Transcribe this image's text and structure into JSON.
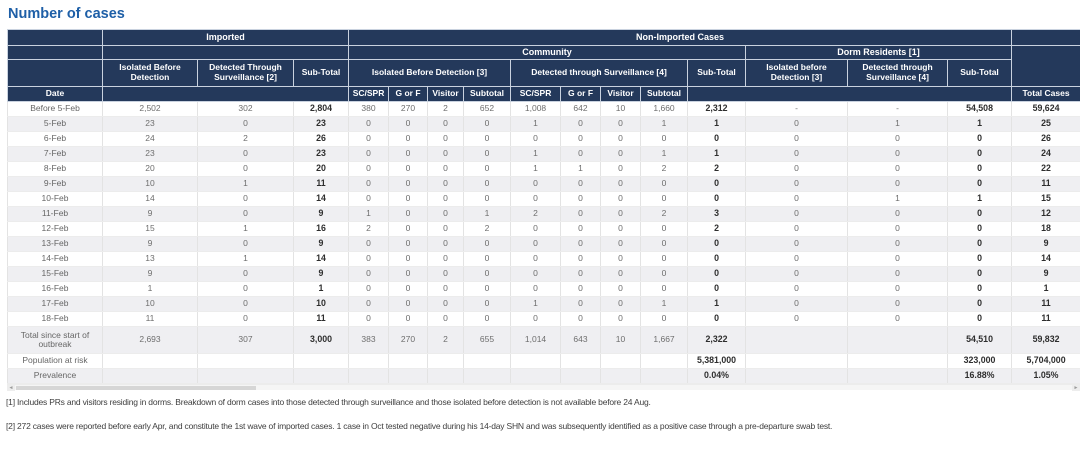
{
  "page": {
    "title": "Number of cases"
  },
  "table": {
    "header": {
      "imported": "Imported",
      "non_imported": "Non-Imported Cases",
      "community": "Community",
      "dorm": "Dorm Residents [1]",
      "imported_cols": [
        "Isolated Before Detection",
        "Detected Through Surveillance [2]",
        "Sub-Total"
      ],
      "community_groups": [
        "Isolated Before Detection [3]",
        "Detected through Surveillance [4]",
        "Sub-Total"
      ],
      "dorm_cols": [
        "Isolated before Detection [3]",
        "Detected through Surveillance [4]",
        "Sub-Total"
      ],
      "sub_cols": [
        "SC/SPR",
        "G or F",
        "Visitor",
        "Subtotal"
      ],
      "date_label": "Date",
      "total_cases": "Total Cases"
    },
    "bold_columns": [
      3,
      12,
      15,
      16
    ],
    "rows": [
      [
        "Before 5-Feb",
        "2,502",
        "302",
        "2,804",
        "380",
        "270",
        "2",
        "652",
        "1,008",
        "642",
        "10",
        "1,660",
        "2,312",
        "-",
        "-",
        "54,508",
        "59,624"
      ],
      [
        "5-Feb",
        "23",
        "0",
        "23",
        "0",
        "0",
        "0",
        "0",
        "1",
        "0",
        "0",
        "1",
        "1",
        "0",
        "1",
        "1",
        "25"
      ],
      [
        "6-Feb",
        "24",
        "2",
        "26",
        "0",
        "0",
        "0",
        "0",
        "0",
        "0",
        "0",
        "0",
        "0",
        "0",
        "0",
        "0",
        "26"
      ],
      [
        "7-Feb",
        "23",
        "0",
        "23",
        "0",
        "0",
        "0",
        "0",
        "1",
        "0",
        "0",
        "1",
        "1",
        "0",
        "0",
        "0",
        "24"
      ],
      [
        "8-Feb",
        "20",
        "0",
        "20",
        "0",
        "0",
        "0",
        "0",
        "1",
        "1",
        "0",
        "2",
        "2",
        "0",
        "0",
        "0",
        "22"
      ],
      [
        "9-Feb",
        "10",
        "1",
        "11",
        "0",
        "0",
        "0",
        "0",
        "0",
        "0",
        "0",
        "0",
        "0",
        "0",
        "0",
        "0",
        "11"
      ],
      [
        "10-Feb",
        "14",
        "0",
        "14",
        "0",
        "0",
        "0",
        "0",
        "0",
        "0",
        "0",
        "0",
        "0",
        "0",
        "1",
        "1",
        "15"
      ],
      [
        "11-Feb",
        "9",
        "0",
        "9",
        "1",
        "0",
        "0",
        "1",
        "2",
        "0",
        "0",
        "2",
        "3",
        "0",
        "0",
        "0",
        "12"
      ],
      [
        "12-Feb",
        "15",
        "1",
        "16",
        "2",
        "0",
        "0",
        "2",
        "0",
        "0",
        "0",
        "0",
        "2",
        "0",
        "0",
        "0",
        "18"
      ],
      [
        "13-Feb",
        "9",
        "0",
        "9",
        "0",
        "0",
        "0",
        "0",
        "0",
        "0",
        "0",
        "0",
        "0",
        "0",
        "0",
        "0",
        "9"
      ],
      [
        "14-Feb",
        "13",
        "1",
        "14",
        "0",
        "0",
        "0",
        "0",
        "0",
        "0",
        "0",
        "0",
        "0",
        "0",
        "0",
        "0",
        "14"
      ],
      [
        "15-Feb",
        "9",
        "0",
        "9",
        "0",
        "0",
        "0",
        "0",
        "0",
        "0",
        "0",
        "0",
        "0",
        "0",
        "0",
        "0",
        "9"
      ],
      [
        "16-Feb",
        "1",
        "0",
        "1",
        "0",
        "0",
        "0",
        "0",
        "0",
        "0",
        "0",
        "0",
        "0",
        "0",
        "0",
        "0",
        "1"
      ],
      [
        "17-Feb",
        "10",
        "0",
        "10",
        "0",
        "0",
        "0",
        "0",
        "1",
        "0",
        "0",
        "1",
        "1",
        "0",
        "0",
        "0",
        "11"
      ],
      [
        "18-Feb",
        "11",
        "0",
        "11",
        "0",
        "0",
        "0",
        "0",
        "0",
        "0",
        "0",
        "0",
        "0",
        "0",
        "0",
        "0",
        "11"
      ],
      [
        "Total since start of outbreak",
        "2,693",
        "307",
        "3,000",
        "383",
        "270",
        "2",
        "655",
        "1,014",
        "643",
        "10",
        "1,667",
        "2,322",
        "",
        "",
        "54,510",
        "59,832"
      ],
      [
        "Population at risk",
        "",
        "",
        "",
        "",
        "",
        "",
        "",
        "",
        "",
        "",
        "",
        "5,381,000",
        "",
        "",
        "323,000",
        "5,704,000"
      ],
      [
        "Prevalence",
        "",
        "",
        "",
        "",
        "",
        "",
        "",
        "",
        "",
        "",
        "",
        "0.04%",
        "",
        "",
        "16.88%",
        "1.05%"
      ]
    ]
  },
  "footnotes": [
    "[1] Includes PRs and visitors residing in dorms. Breakdown of dorm cases into those detected through surveillance and those isolated before detection is not available before 24 Aug.",
    "[2] 272 cases were reported before early Apr, and constitute the 1st wave of imported cases. 1 case in Oct tested negative during his 14-day SHN and was subsequently identified as a positive case through a pre-departure swab test."
  ],
  "colors": {
    "header_bg": "#24395b",
    "title_blue": "#1e5fa7",
    "alt_row": "#efeff2"
  }
}
